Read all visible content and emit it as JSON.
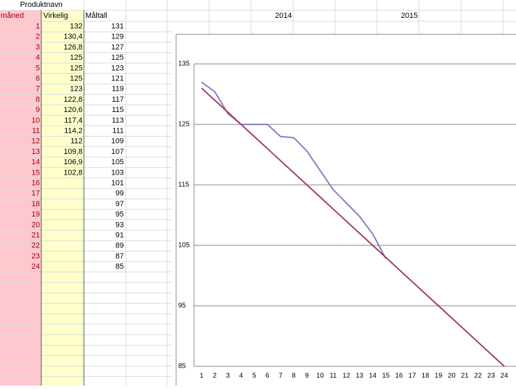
{
  "spreadsheet": {
    "title": "Produktnavn",
    "headers": [
      "måned",
      "Virkelig",
      "Måltall"
    ],
    "rows": [
      [
        "1",
        "132",
        "131"
      ],
      [
        "2",
        "130,4",
        "129"
      ],
      [
        "3",
        "126,8",
        "127"
      ],
      [
        "4",
        "125",
        "125"
      ],
      [
        "5",
        "125",
        "123"
      ],
      [
        "6",
        "125",
        "121"
      ],
      [
        "7",
        "123",
        "119"
      ],
      [
        "8",
        "122,8",
        "117"
      ],
      [
        "9",
        "120,6",
        "115"
      ],
      [
        "10",
        "117,4",
        "113"
      ],
      [
        "11",
        "114,2",
        "111"
      ],
      [
        "12",
        "112",
        "109"
      ],
      [
        "13",
        "109,8",
        "107"
      ],
      [
        "14",
        "106,9",
        "105"
      ],
      [
        "15",
        "102,8",
        "103"
      ],
      [
        "16",
        null,
        "101"
      ],
      [
        "17",
        null,
        "99"
      ],
      [
        "18",
        null,
        "97"
      ],
      [
        "19",
        null,
        "95"
      ],
      [
        "20",
        null,
        "93"
      ],
      [
        "21",
        null,
        "91"
      ],
      [
        "22",
        null,
        "89"
      ],
      [
        "23",
        null,
        "87"
      ],
      [
        "24",
        null,
        "85"
      ]
    ],
    "year_headers": [
      "2014",
      "2015"
    ]
  },
  "chart_data": {
    "type": "line",
    "categories": [
      1,
      2,
      3,
      4,
      5,
      6,
      7,
      8,
      9,
      10,
      11,
      12,
      13,
      14,
      15,
      16,
      17,
      18,
      19,
      20,
      21,
      22,
      23,
      24
    ],
    "series": [
      {
        "color": "#7f7fc0",
        "values": [
          132,
          130.4,
          126.8,
          125,
          125,
          125,
          123,
          122.8,
          120.6,
          117.4,
          114.2,
          112,
          109.8,
          106.9,
          102.8,
          null,
          null,
          null,
          null,
          null,
          null,
          null,
          null,
          null
        ]
      },
      {
        "color": "#a33a5e",
        "values": [
          131,
          129,
          127,
          125,
          123,
          121,
          119,
          117,
          115,
          113,
          111,
          109,
          107,
          105,
          103,
          101,
          99,
          97,
          95,
          93,
          91,
          89,
          87,
          85
        ]
      }
    ],
    "ylim": [
      85,
      135
    ],
    "yticks": [
      85,
      95,
      105,
      115,
      125,
      135
    ],
    "grid": true
  }
}
